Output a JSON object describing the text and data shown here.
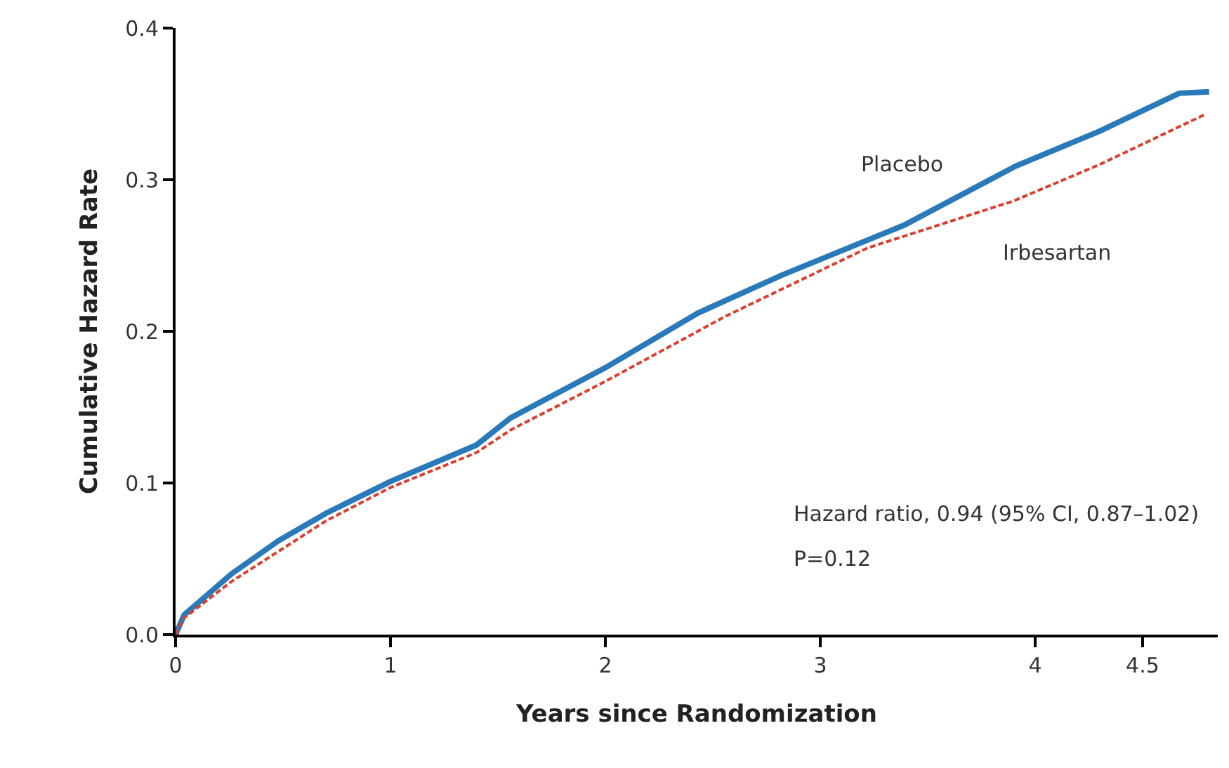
{
  "chart_data": {
    "type": "line",
    "xlabel": "Years since Randomization",
    "ylabel": "Cumulative Hazard Rate",
    "xlim": [
      0,
      4.85
    ],
    "ylim": [
      0,
      0.4
    ],
    "xticks": [
      0,
      1,
      2,
      3,
      4,
      4.5
    ],
    "yticks": [
      {
        "value": 0,
        "label": "0.0"
      },
      0.1,
      0.2,
      0.3,
      0.4
    ],
    "legend": false,
    "marker": "none",
    "series": [
      {
        "name": "Placebo",
        "color": "#2a7ab9",
        "line_style": "solid",
        "x": [
          0,
          0.04,
          0.26,
          0.48,
          0.7,
          1,
          1.4,
          1.56,
          2.0,
          2.43,
          2.82,
          3.39,
          3.91,
          4.3,
          4.67,
          4.81
        ],
        "values": [
          0,
          0.013,
          0.04,
          0.062,
          0.08,
          0.101,
          0.125,
          0.143,
          0.176,
          0.212,
          0.237,
          0.27,
          0.309,
          0.332,
          0.357,
          0.358
        ]
      },
      {
        "name": "Irbesartan",
        "color": "#d9412f",
        "line_style": "dashed",
        "x": [
          0,
          0.04,
          0.26,
          0.48,
          0.7,
          1,
          1.4,
          1.56,
          2.0,
          2.56,
          3.22,
          3.9,
          4.3,
          4.79
        ],
        "values": [
          0,
          0.011,
          0.035,
          0.055,
          0.075,
          0.097,
          0.12,
          0.135,
          0.167,
          0.21,
          0.255,
          0.286,
          0.31,
          0.343
        ]
      }
    ],
    "annotations": [
      "Hazard ratio, 0.94 (95% CI, 0.87–1.02)",
      "P=0.12"
    ]
  }
}
